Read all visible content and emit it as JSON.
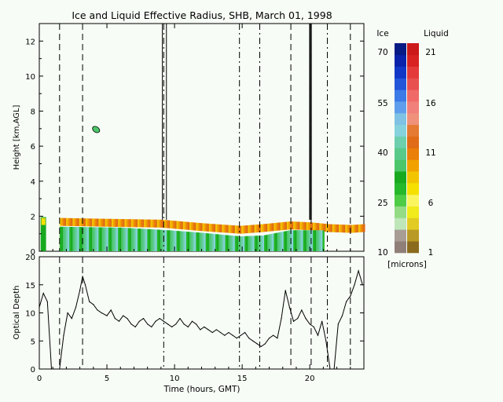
{
  "title": "Ice and Liquid Effective Radius, SHB, March 01, 1998",
  "colors": {
    "background": "#f7fcf6",
    "ice_scale": [
      "#8f7f78",
      "#a89d95",
      "#bfe6b9",
      "#94db86",
      "#4fcc45",
      "#25b82a",
      "#18a91f",
      "#4cc66a",
      "#59c98a",
      "#6dcfad",
      "#86d2dc",
      "#7fc2e3",
      "#5f9ded",
      "#3c7ae8",
      "#2355d8",
      "#1237c6",
      "#0b22ab",
      "#081a83"
    ],
    "liquid_scale": [
      "#8a6b1e",
      "#b99a24",
      "#e2cb23",
      "#f1ea1c",
      "#faf55f",
      "#f5e000",
      "#f3c500",
      "#f1a200",
      "#ea7f09",
      "#e06b18",
      "#e47a33",
      "#f0917b",
      "#f2807a",
      "#f06a67",
      "#e95050",
      "#e43a3a",
      "#d92222",
      "#cc1919"
    ]
  },
  "colorbar": {
    "ice_header": "Ice",
    "liquid_header": "Liquid",
    "ice_ticks": [
      "70",
      "55",
      "40",
      "25",
      "10"
    ],
    "liquid_ticks": [
      "21",
      "16",
      "11",
      "6",
      "1"
    ],
    "units": "[microns]"
  },
  "chart_data": [
    {
      "type": "heatmap",
      "title": "Ice and Liquid Effective Radius, SHB, March 01, 1998",
      "ylabel": "Height [km,AGL]",
      "xlim": [
        0,
        24
      ],
      "ylim": [
        0,
        13
      ],
      "yticks": [
        "0",
        "2",
        "4",
        "6",
        "8",
        "10",
        "12"
      ],
      "vertical_lines": [
        {
          "x": 1.5,
          "style": "dashed"
        },
        {
          "x": 3.2,
          "style": "dashed"
        },
        {
          "x": 9.2,
          "style": "dash-dot"
        },
        {
          "x": 14.8,
          "style": "dash-dot"
        },
        {
          "x": 16.3,
          "style": "dash-dot"
        },
        {
          "x": 18.6,
          "style": "dashed"
        },
        {
          "x": 20.1,
          "style": "dashed"
        },
        {
          "x": 21.3,
          "style": "dash-dot"
        },
        {
          "x": 23.0,
          "style": "dashed"
        }
      ],
      "cloud_layers": [
        {
          "name": "liquid",
          "start": 1.5,
          "end": 24.0,
          "top_km": [
            [
              1.5,
              1.9
            ],
            [
              5,
              1.85
            ],
            [
              9,
              1.8
            ],
            [
              12,
              1.6
            ],
            [
              14.8,
              1.45
            ],
            [
              16.5,
              1.55
            ],
            [
              18.5,
              1.7
            ],
            [
              20,
              1.65
            ],
            [
              21.3,
              1.55
            ],
            [
              23,
              1.5
            ],
            [
              24,
              1.55
            ]
          ]
        },
        {
          "name": "ice",
          "start": 1.5,
          "end": 21.0,
          "top_km": [
            [
              1.5,
              1.4
            ],
            [
              6,
              1.35
            ],
            [
              9.5,
              1.2
            ],
            [
              12,
              1.05
            ],
            [
              14.8,
              0.85
            ],
            [
              16.5,
              0.9
            ],
            [
              18.5,
              1.2
            ],
            [
              21,
              1.2
            ]
          ]
        }
      ]
    },
    {
      "type": "line",
      "xlabel": "Time (hours, GMT)",
      "ylabel": "Optical Depth",
      "xlim": [
        0,
        24
      ],
      "ylim": [
        0,
        20
      ],
      "xticks": [
        "0",
        "5",
        "10",
        "15",
        "20"
      ],
      "yticks": [
        "0",
        "5",
        "10",
        "15",
        "20"
      ],
      "x": [
        0.0,
        0.3,
        0.6,
        0.9,
        1.1,
        1.5,
        1.8,
        2.1,
        2.4,
        2.7,
        3.0,
        3.2,
        3.4,
        3.7,
        4.0,
        4.3,
        4.6,
        5.0,
        5.3,
        5.6,
        5.9,
        6.2,
        6.5,
        6.8,
        7.1,
        7.4,
        7.7,
        8.0,
        8.3,
        8.6,
        8.9,
        9.2,
        9.5,
        9.8,
        10.1,
        10.4,
        10.7,
        11.0,
        11.3,
        11.6,
        11.9,
        12.2,
        12.5,
        12.8,
        13.1,
        13.4,
        13.7,
        14.0,
        14.3,
        14.6,
        14.9,
        15.2,
        15.5,
        15.8,
        16.1,
        16.4,
        16.7,
        17.0,
        17.3,
        17.6,
        17.9,
        18.2,
        18.5,
        18.8,
        19.1,
        19.4,
        19.7,
        20.0,
        20.3,
        20.6,
        20.9,
        21.2,
        21.5,
        21.8,
        22.1,
        22.4,
        22.7,
        23.0,
        23.3,
        23.6,
        23.9
      ],
      "y": [
        11.0,
        13.5,
        12.0,
        0.0,
        0.0,
        0.0,
        6.0,
        10.0,
        9.0,
        11.0,
        14.0,
        16.5,
        15.0,
        12.0,
        11.5,
        10.5,
        10.0,
        9.5,
        10.5,
        9.0,
        8.5,
        9.5,
        9.0,
        8.0,
        7.5,
        8.5,
        9.0,
        8.0,
        7.5,
        8.5,
        9.0,
        8.5,
        8.0,
        7.5,
        8.0,
        9.0,
        8.0,
        7.5,
        8.5,
        8.0,
        7.0,
        7.5,
        7.0,
        6.5,
        7.0,
        6.5,
        6.0,
        6.5,
        6.0,
        5.5,
        6.0,
        6.5,
        5.5,
        5.0,
        4.5,
        4.0,
        4.5,
        5.5,
        6.0,
        5.5,
        9.0,
        14.0,
        11.0,
        8.5,
        9.0,
        10.5,
        9.0,
        8.0,
        7.5,
        6.0,
        8.5,
        5.0,
        0.0,
        0.0,
        8.0,
        9.5,
        12.0,
        13.0,
        15.0,
        17.5,
        15.0
      ],
      "vertical_lines": [
        1.5,
        3.2,
        9.2,
        14.8,
        16.3,
        18.6,
        20.1,
        21.3,
        23.0
      ]
    }
  ]
}
